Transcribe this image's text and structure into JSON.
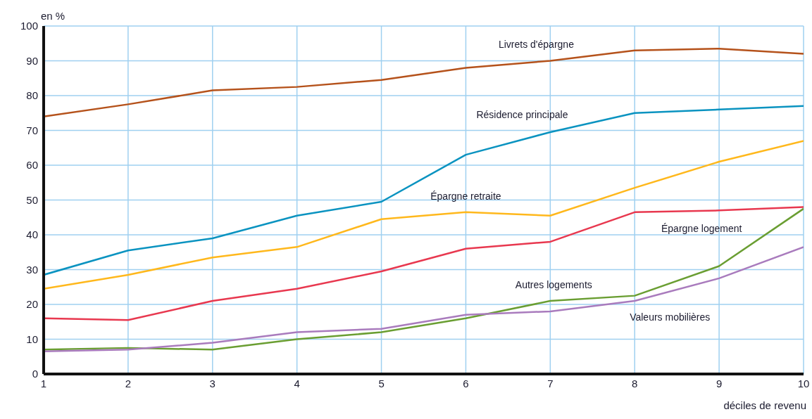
{
  "chart_data": {
    "type": "line",
    "ylabel": "en %",
    "xlabel": "déciles de revenu",
    "x": [
      1,
      2,
      3,
      4,
      5,
      6,
      7,
      8,
      9,
      10
    ],
    "xlim": [
      1,
      10
    ],
    "xticks": [
      1,
      2,
      3,
      4,
      5,
      6,
      7,
      8,
      9,
      10
    ],
    "ylim": [
      0,
      100
    ],
    "yticks": [
      0,
      10,
      20,
      30,
      40,
      50,
      60,
      70,
      80,
      90,
      100
    ],
    "grid": true,
    "legend": false,
    "marker": "none",
    "line_style": "solid",
    "series": [
      {
        "name": "Livrets d'épargne",
        "color": "#b5521b",
        "values": [
          74,
          77.5,
          81.5,
          82.5,
          84.5,
          88,
          90,
          93,
          93.5,
          92
        ]
      },
      {
        "name": "Résidence principale",
        "color": "#0a93c0",
        "values": [
          28.5,
          35.5,
          39,
          45.5,
          49.5,
          63,
          69.5,
          75,
          76,
          77
        ]
      },
      {
        "name": "Épargne retraite",
        "color": "#ffb81c",
        "values": [
          24.5,
          28.5,
          33.5,
          36.5,
          44.5,
          46.5,
          45.5,
          53.5,
          61,
          67
        ]
      },
      {
        "name": "Épargne logement",
        "color": "#e8384f",
        "values": [
          16,
          15.5,
          21,
          24.5,
          29.5,
          36,
          38,
          46.5,
          47,
          48
        ]
      },
      {
        "name": "Autres logements",
        "color": "#6a9e32",
        "values": [
          7,
          7.5,
          7,
          10,
          12,
          16,
          21,
          22.5,
          31,
          47.5
        ]
      },
      {
        "name": "Valeurs mobilières",
        "color": "#a97bbd",
        "values": [
          6.5,
          7,
          9,
          12,
          13,
          17,
          18,
          21,
          27.5,
          36.5
        ]
      }
    ]
  }
}
